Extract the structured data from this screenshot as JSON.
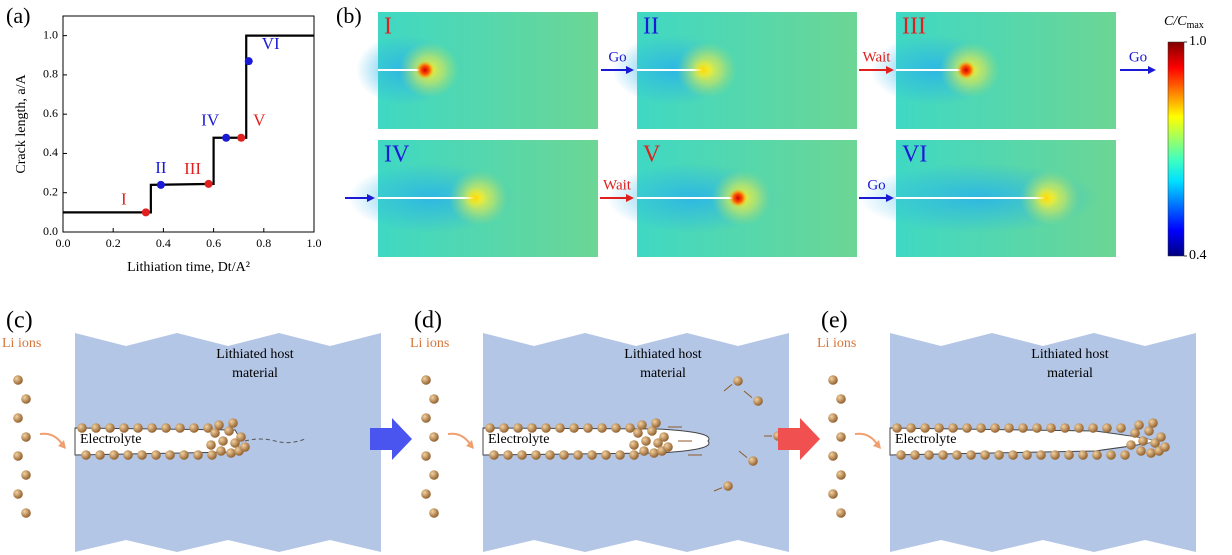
{
  "chart_data": {
    "type": "line",
    "panel_label": "(a)",
    "x_label": "Lithiation time, Dt/A²",
    "y_label": "Crack length, a/A",
    "x": [
      0,
      0.35,
      0.35,
      0.6,
      0.6,
      0.73,
      0.73,
      1.0
    ],
    "values": [
      0.1,
      0.1,
      0.24,
      0.245,
      0.48,
      0.48,
      1.0,
      1.0
    ],
    "color": "#000000",
    "points": {
      "labels": [
        "I",
        "II",
        "III",
        "IV",
        "V",
        "VI"
      ],
      "x": [
        0.33,
        0.39,
        0.58,
        0.65,
        0.71,
        0.74
      ],
      "values": [
        0.1,
        0.24,
        0.245,
        0.48,
        0.48,
        0.87
      ],
      "colors": [
        "#e0201e",
        "#1a1ad6",
        "#e0201e",
        "#1a1ad6",
        "#e0201e",
        "#1a1ad6"
      ]
    },
    "xlim": [
      0,
      1
    ],
    "ylim": [
      0,
      1.1
    ],
    "xticks": [
      {
        "value": 0,
        "label": "0.0"
      },
      0.2,
      0.4,
      0.6,
      0.8,
      {
        "value": 1,
        "label": "1.0"
      }
    ],
    "yticks": [
      {
        "value": 0,
        "label": "0.0"
      },
      0.2,
      0.4,
      0.6,
      0.8,
      {
        "value": 1,
        "label": "1.0"
      }
    ]
  },
  "panel_b": {
    "label": "(b)",
    "frames": [
      "I",
      "II",
      "III",
      "IV",
      "V",
      "VI"
    ],
    "frame_colors": [
      "#e0201e",
      "#1a1ad6",
      "#e0201e",
      "#1a1ad6",
      "#e0201e",
      "#1a1ad6"
    ],
    "transitions": [
      "Go",
      "Wait",
      "Go",
      "Wait",
      "Go"
    ],
    "transition_colors": [
      "#1a1ad6",
      "#e0201e",
      "#1a1ad6",
      "#e0201e",
      "#1a1ad6"
    ],
    "colorbar": {
      "title": "C/C",
      "title_sub": "max",
      "ticks": [
        {
          "value": 1.0,
          "label": "1.0"
        },
        0.4
      ]
    }
  },
  "panels": [
    {
      "label": "(c)",
      "ions": "Li ions",
      "host": [
        "Lithiated host",
        "material"
      ],
      "electrolyte": "Electrolyte"
    },
    {
      "label": "(d)",
      "ions": "Li ions",
      "host": [
        "Lithiated host",
        "material"
      ],
      "electrolyte": "Electrolyte"
    },
    {
      "label": "(e)",
      "ions": "Li ions",
      "host": [
        "Lithiated host",
        "material"
      ],
      "electrolyte": "Electrolyte"
    }
  ]
}
